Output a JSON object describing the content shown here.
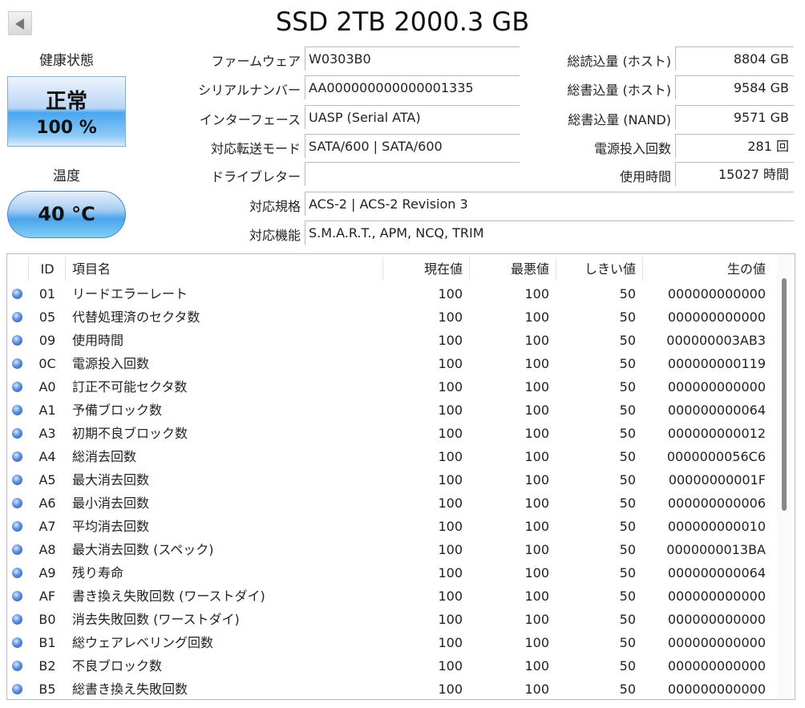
{
  "title": "SSD 2TB 2000.3 GB",
  "health": {
    "label": "健康状態",
    "status": "正常",
    "percent": "100 %"
  },
  "temperature": {
    "label": "温度",
    "value": "40 °C"
  },
  "info_left": [
    {
      "label": "ファームウェア",
      "value": "W0303B0"
    },
    {
      "label": "シリアルナンバー",
      "value": "AA000000000000001335"
    },
    {
      "label": "インターフェース",
      "value": "UASP (Serial ATA)"
    },
    {
      "label": "対応転送モード",
      "value": "SATA/600 | SATA/600"
    },
    {
      "label": "ドライブレター",
      "value": ""
    }
  ],
  "info_right": [
    {
      "label": "総読込量 (ホスト)",
      "value": "8804 GB"
    },
    {
      "label": "総書込量 (ホスト)",
      "value": "9584 GB"
    },
    {
      "label": "総書込量 (NAND)",
      "value": "9571 GB"
    },
    {
      "label": "電源投入回数",
      "value": "281 回"
    },
    {
      "label": "使用時間",
      "value": "15027 時間"
    }
  ],
  "info_wide": [
    {
      "label": "対応規格",
      "value": "ACS-2 | ACS-2 Revision 3"
    },
    {
      "label": "対応機能",
      "value": "S.M.A.R.T., APM, NCQ, TRIM"
    }
  ],
  "status_color": "#4a7fd6",
  "table": {
    "headers": {
      "id": "ID",
      "name": "項目名",
      "current": "現在値",
      "worst": "最悪値",
      "threshold": "しきい値",
      "raw": "生の値"
    },
    "rows": [
      {
        "id": "01",
        "name": "リードエラーレート",
        "current": "100",
        "worst": "100",
        "threshold": "50",
        "raw": "000000000000"
      },
      {
        "id": "05",
        "name": "代替処理済のセクタ数",
        "current": "100",
        "worst": "100",
        "threshold": "50",
        "raw": "000000000000"
      },
      {
        "id": "09",
        "name": "使用時間",
        "current": "100",
        "worst": "100",
        "threshold": "50",
        "raw": "000000003AB3"
      },
      {
        "id": "0C",
        "name": "電源投入回数",
        "current": "100",
        "worst": "100",
        "threshold": "50",
        "raw": "000000000119"
      },
      {
        "id": "A0",
        "name": "訂正不可能セクタ数",
        "current": "100",
        "worst": "100",
        "threshold": "50",
        "raw": "000000000000"
      },
      {
        "id": "A1",
        "name": "予備ブロック数",
        "current": "100",
        "worst": "100",
        "threshold": "50",
        "raw": "000000000064"
      },
      {
        "id": "A3",
        "name": "初期不良ブロック数",
        "current": "100",
        "worst": "100",
        "threshold": "50",
        "raw": "000000000012"
      },
      {
        "id": "A4",
        "name": "総消去回数",
        "current": "100",
        "worst": "100",
        "threshold": "50",
        "raw": "0000000056C6"
      },
      {
        "id": "A5",
        "name": "最大消去回数",
        "current": "100",
        "worst": "100",
        "threshold": "50",
        "raw": "00000000001F"
      },
      {
        "id": "A6",
        "name": "最小消去回数",
        "current": "100",
        "worst": "100",
        "threshold": "50",
        "raw": "000000000006"
      },
      {
        "id": "A7",
        "name": "平均消去回数",
        "current": "100",
        "worst": "100",
        "threshold": "50",
        "raw": "000000000010"
      },
      {
        "id": "A8",
        "name": "最大消去回数 (スペック)",
        "current": "100",
        "worst": "100",
        "threshold": "50",
        "raw": "0000000013BA"
      },
      {
        "id": "A9",
        "name": "残り寿命",
        "current": "100",
        "worst": "100",
        "threshold": "50",
        "raw": "000000000064"
      },
      {
        "id": "AF",
        "name": "書き換え失敗回数 (ワーストダイ)",
        "current": "100",
        "worst": "100",
        "threshold": "50",
        "raw": "000000000000"
      },
      {
        "id": "B0",
        "name": "消去失敗回数 (ワーストダイ)",
        "current": "100",
        "worst": "100",
        "threshold": "50",
        "raw": "000000000000"
      },
      {
        "id": "B1",
        "name": "総ウェアレベリング回数",
        "current": "100",
        "worst": "100",
        "threshold": "50",
        "raw": "000000000000"
      },
      {
        "id": "B2",
        "name": "不良ブロック数",
        "current": "100",
        "worst": "100",
        "threshold": "50",
        "raw": "000000000000"
      },
      {
        "id": "B5",
        "name": "総書き換え失敗回数",
        "current": "100",
        "worst": "100",
        "threshold": "50",
        "raw": "000000000000"
      }
    ]
  }
}
